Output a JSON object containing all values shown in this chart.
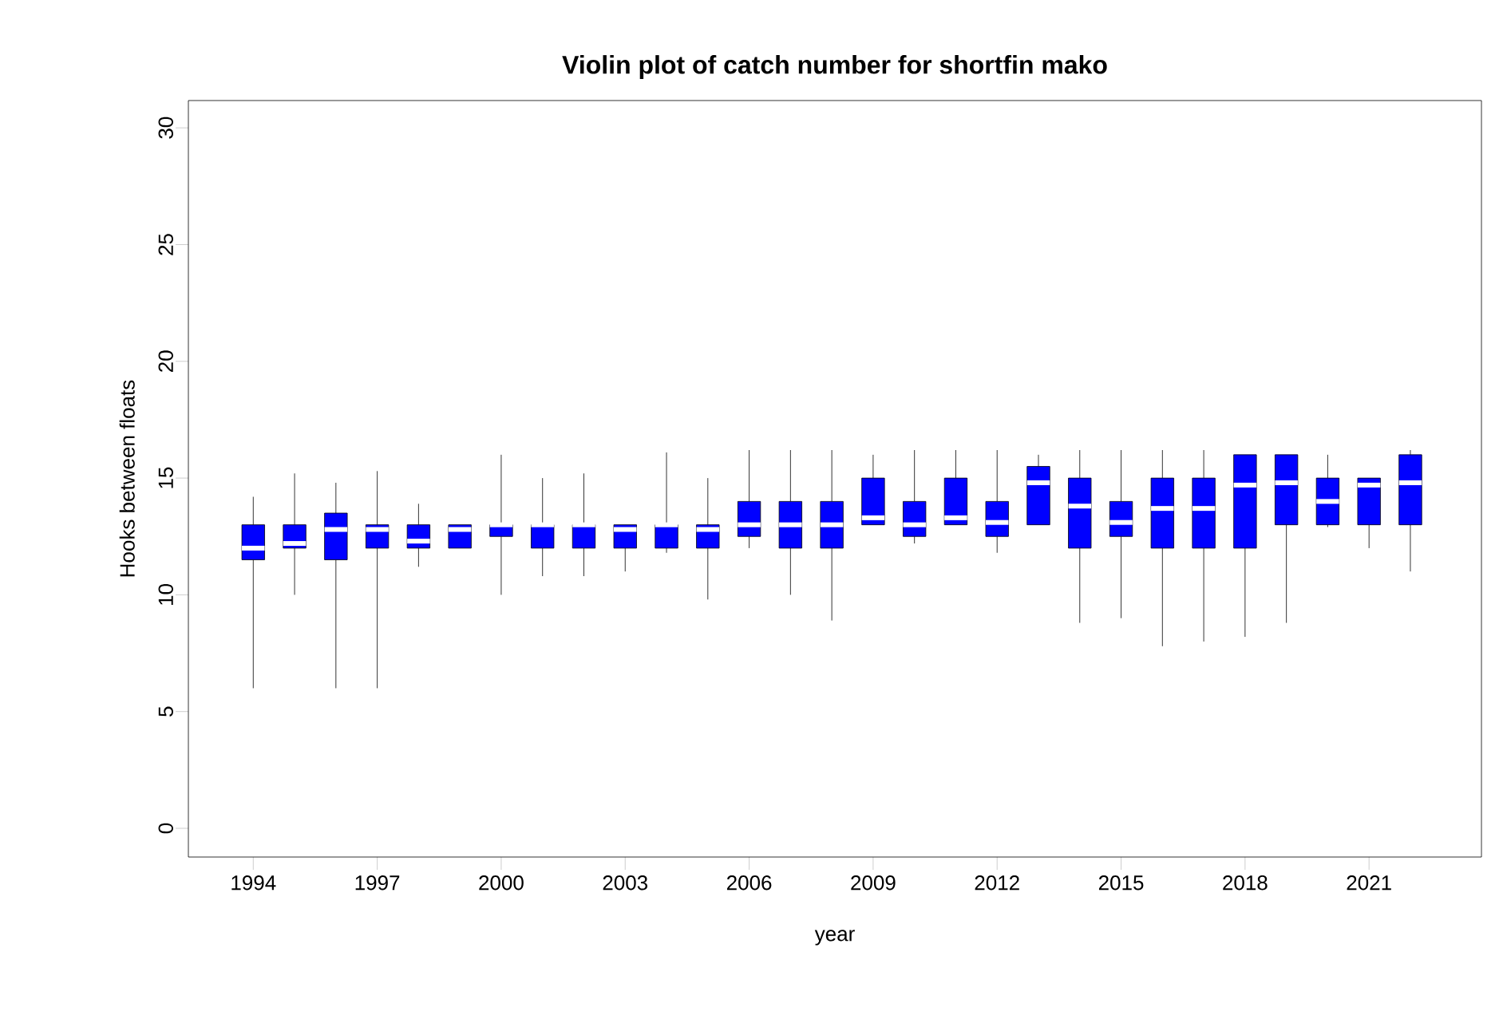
{
  "chart_data": {
    "type": "box",
    "title": "Violin plot of catch number for shortfin mako",
    "xlabel": "year",
    "ylabel": "Hooks between floats",
    "categories": [
      "1994",
      null,
      null,
      "1997",
      null,
      null,
      "2000",
      null,
      null,
      "2003",
      null,
      null,
      "2006",
      null,
      null,
      "2009",
      null,
      null,
      "2012",
      null,
      null,
      "2015",
      null,
      null,
      "2018",
      null,
      null,
      "2021",
      null
    ],
    "color": "#0000ff",
    "boxes": [
      {
        "low": 6,
        "q1": 11.5,
        "median": 12,
        "q3": 13,
        "high": 14.2
      },
      {
        "low": 10,
        "q1": 12,
        "median": 12.2,
        "q3": 13,
        "high": 15.2
      },
      {
        "low": 6,
        "q1": 11.5,
        "median": 12.8,
        "q3": 13.5,
        "high": 14.8
      },
      {
        "low": 6,
        "q1": 12,
        "median": 12.8,
        "q3": 13,
        "high": 15.3
      },
      {
        "low": 11.2,
        "q1": 12,
        "median": 12.3,
        "q3": 13,
        "high": 13.9
      },
      {
        "low": 12,
        "q1": 12,
        "median": 12.8,
        "q3": 13,
        "high": 13
      },
      {
        "low": 10,
        "q1": 12.5,
        "median": 13,
        "q3": 13,
        "high": 16
      },
      {
        "low": 10.8,
        "q1": 12,
        "median": 13,
        "q3": 13,
        "high": 15
      },
      {
        "low": 10.8,
        "q1": 12,
        "median": 13,
        "q3": 13,
        "high": 15.2
      },
      {
        "low": 11,
        "q1": 12,
        "median": 12.8,
        "q3": 13,
        "high": 13
      },
      {
        "low": 11.8,
        "q1": 12,
        "median": 13,
        "q3": 13,
        "high": 16.1
      },
      {
        "low": 9.8,
        "q1": 12,
        "median": 12.8,
        "q3": 13,
        "high": 15
      },
      {
        "low": 12,
        "q1": 12.5,
        "median": 13,
        "q3": 14,
        "high": 16.2
      },
      {
        "low": 10,
        "q1": 12,
        "median": 13,
        "q3": 14,
        "high": 16.2
      },
      {
        "low": 8.9,
        "q1": 12,
        "median": 13,
        "q3": 14,
        "high": 16.2
      },
      {
        "low": 13,
        "q1": 13,
        "median": 13.3,
        "q3": 15,
        "high": 16
      },
      {
        "low": 12.2,
        "q1": 12.5,
        "median": 13,
        "q3": 14,
        "high": 16.2
      },
      {
        "low": 13,
        "q1": 13,
        "median": 13.3,
        "q3": 15,
        "high": 16.2
      },
      {
        "low": 11.8,
        "q1": 12.5,
        "median": 13.1,
        "q3": 14,
        "high": 16.2
      },
      {
        "low": 13,
        "q1": 13,
        "median": 14.8,
        "q3": 15.5,
        "high": 16
      },
      {
        "low": 8.8,
        "q1": 12,
        "median": 13.8,
        "q3": 15,
        "high": 16.2
      },
      {
        "low": 9,
        "q1": 12.5,
        "median": 13.1,
        "q3": 14,
        "high": 16.2
      },
      {
        "low": 7.8,
        "q1": 12,
        "median": 13.7,
        "q3": 15,
        "high": 16.2
      },
      {
        "low": 8,
        "q1": 12,
        "median": 13.7,
        "q3": 15,
        "high": 16.2
      },
      {
        "low": 8.2,
        "q1": 12,
        "median": 14.7,
        "q3": 16,
        "high": 16
      },
      {
        "low": 8.8,
        "q1": 13,
        "median": 14.8,
        "q3": 16,
        "high": 16
      },
      {
        "low": 12.9,
        "q1": 13,
        "median": 14,
        "q3": 15,
        "high": 16
      },
      {
        "low": 12,
        "q1": 13,
        "median": 14.7,
        "q3": 15,
        "high": 15
      },
      {
        "low": 11,
        "q1": 13,
        "median": 14.8,
        "q3": 16,
        "high": 16.2
      }
    ],
    "ylim": [
      -1.23,
      31.17
    ],
    "yticks": [
      0,
      5,
      10,
      15,
      20,
      25,
      30
    ],
    "grid": false
  }
}
